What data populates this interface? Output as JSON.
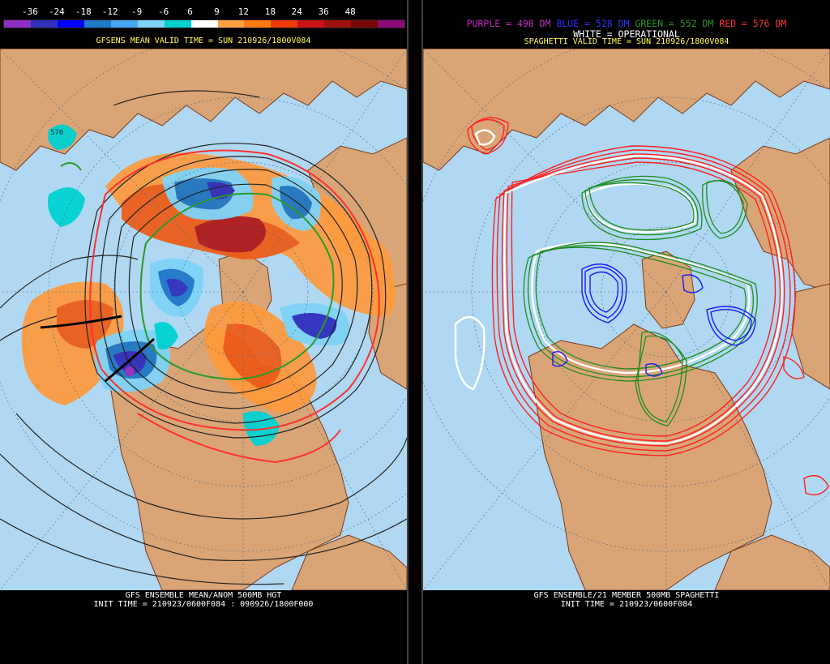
{
  "left": {
    "colorbar": {
      "labels": [
        "-36",
        "-24",
        "-18",
        "-12",
        "-9",
        "-6",
        "6",
        "9",
        "12",
        "18",
        "24",
        "36",
        "48"
      ],
      "colors": [
        "#8e2ec4",
        "#2f2fbe",
        "#0000ff",
        "#1f78c8",
        "#46a6f0",
        "#7fd3f7",
        "#00d2d2",
        "#ffffff",
        "#ffa040",
        "#ff7a10",
        "#ee3a0a",
        "#c81414",
        "#a00f0f",
        "#7a0808",
        "#8c0a78"
      ]
    },
    "valid_time": "GFSENS MEAN VALID TIME = SUN 210926/1800V084",
    "contour_label": "576",
    "footer_line1": "GFS ENSEMBLE MEAN/ANOM 500MB HGT",
    "footer_line2": "INIT TIME = 210923/0600F084 : 090926/1800F000"
  },
  "right": {
    "legend": {
      "purple": "PURPLE = 498 DM",
      "blue": "BLUE = 528 DM",
      "green": "GREEN = 552 DM",
      "red": "RED = 576 DM",
      "white": "WHITE = OPERATIONAL"
    },
    "valid_time": "SPAGHETTI VALID TIME = SUN 210926/1800V084",
    "footer_line1": "GFS ENSEMBLE/21 MEMBER 500MB SPAGHETTI",
    "footer_line2": "INIT TIME = 210923/0600F084"
  },
  "colors": {
    "ocean": "#b0d8f2",
    "land": "#d9a577",
    "border": "#7a3a1a",
    "header_yellow": "#ffff55",
    "purple": "#c030c0",
    "blue": "#3030ff",
    "green": "#2a9a2a",
    "red": "#ff3030"
  }
}
